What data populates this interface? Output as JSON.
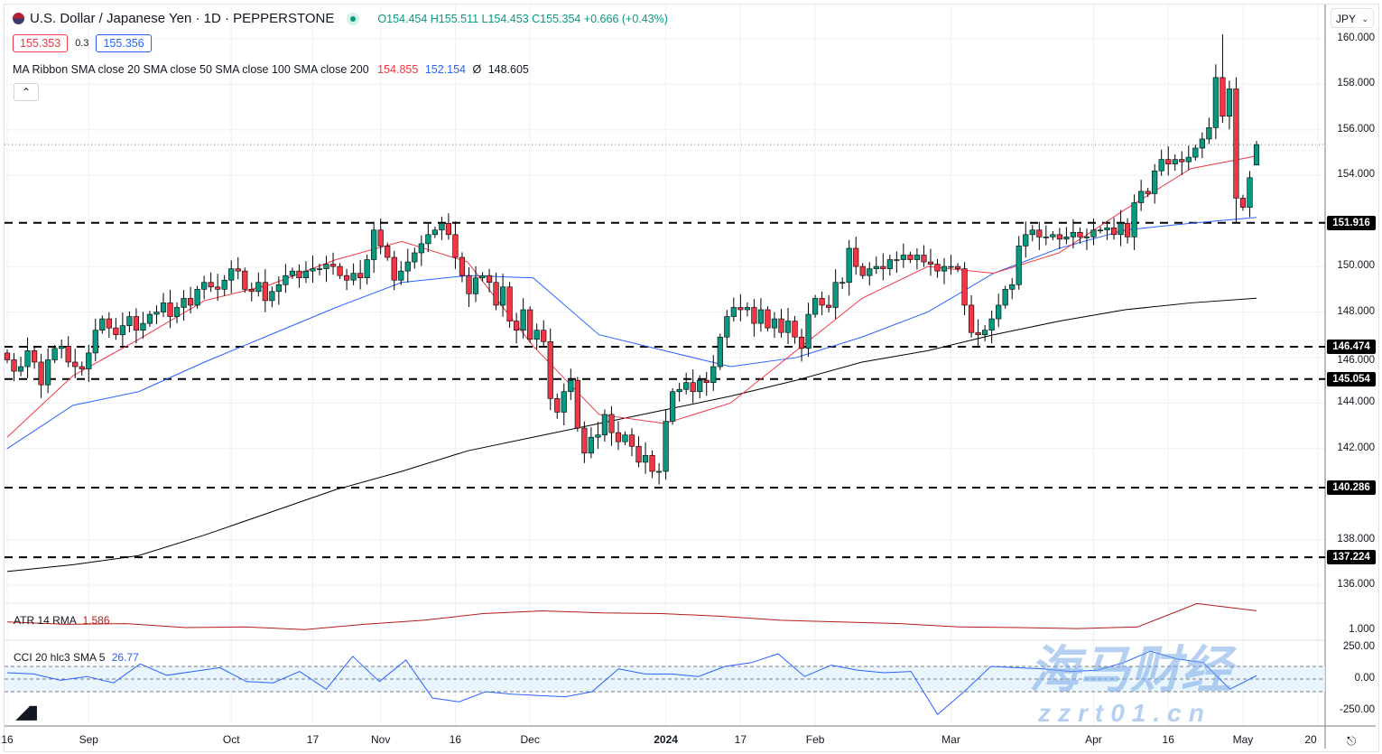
{
  "header": {
    "flag_icon": "us-jp-flag-icon",
    "title": "U.S. Dollar / Japanese Yen · 1D · PEPPERSTONE",
    "market_status_color": "#089981",
    "ohlc": "O154.454 H155.511 L154.453 C155.354 +0.666 (+0.43%)",
    "sell_price": "155.353",
    "spread": "0.3",
    "buy_price": "155.356"
  },
  "indicators": {
    "ma_ribbon_label": "MA Ribbon SMA close 20 SMA close 50 SMA close 100 SMA close 200",
    "ma_values": [
      "154.855",
      "152.154",
      "Ø",
      "148.605"
    ],
    "atr_label": "ATR 14 RMA",
    "atr_value": "1.586",
    "cci_label": "CCI 20 hlc3 SMA 5",
    "cci_value": "26.77"
  },
  "currency_selector": "JPY",
  "watermark": {
    "cn": "海马财经",
    "url": "zzrt01.cn"
  },
  "colors": {
    "up": "#089981",
    "down": "#f23645",
    "sma20": "#f23645",
    "sma50": "#2962ff",
    "sma_long": "#000000",
    "atr": "#b71c1c",
    "cci": "#2962ff"
  },
  "chart_data": {
    "type": "candlestick",
    "price_axis": {
      "ylim": [
        135.2,
        160.9
      ],
      "ticks": [
        "160.000",
        "158.000",
        "156.000",
        "154.000",
        "150.000",
        "148.000",
        "146.000",
        "144.000",
        "142.000",
        "138.000",
        "136.000"
      ]
    },
    "time_ticks": [
      "16",
      "Sep",
      "Oct",
      "17",
      "Nov",
      "16",
      "Dec",
      "2024",
      "17",
      "Feb",
      "Mar",
      "Apr",
      "16",
      "May",
      "20"
    ],
    "closes": [
      145.9,
      145.4,
      145.6,
      146.3,
      145.8,
      144.8,
      145.9,
      146.4,
      146.5,
      145.8,
      145.6,
      145.5,
      146.2,
      147.2,
      147.7,
      147.3,
      147.0,
      147.4,
      147.8,
      147.2,
      147.5,
      147.9,
      148.0,
      148.4,
      147.8,
      148.2,
      148.6,
      148.3,
      149.0,
      149.3,
      149.1,
      149.0,
      149.4,
      149.9,
      149.8,
      149.0,
      148.9,
      149.3,
      148.5,
      148.9,
      149.2,
      149.6,
      149.8,
      149.5,
      149.8,
      149.9,
      149.9,
      150.1,
      150.0,
      149.6,
      149.4,
      149.7,
      149.5,
      150.3,
      151.6,
      150.9,
      150.4,
      149.4,
      149.8,
      150.2,
      150.6,
      151.0,
      151.4,
      151.6,
      151.9,
      151.4,
      150.4,
      149.6,
      148.8,
      149.5,
      149.6,
      149.3,
      148.3,
      149.1,
      147.6,
      147.2,
      148.1,
      146.8,
      147.2,
      146.7,
      144.2,
      143.6,
      144.5,
      145.0,
      142.9,
      141.8,
      142.5,
      142.6,
      143.5,
      142.7,
      142.3,
      142.6,
      142.1,
      141.4,
      141.7,
      141.0,
      141.0,
      143.2,
      144.5,
      144.6,
      144.9,
      144.5,
      145.0,
      144.9,
      145.6,
      146.9,
      147.8,
      148.2,
      148.1,
      148.2,
      147.5,
      148.1,
      147.3,
      147.7,
      147.1,
      147.6,
      146.9,
      146.4,
      147.9,
      148.6,
      148.3,
      148.2,
      149.3,
      149.3,
      150.8,
      150.0,
      149.6,
      149.9,
      150.0,
      149.9,
      150.3,
      150.3,
      150.5,
      150.3,
      150.5,
      150.2,
      150.1,
      149.8,
      150.0,
      150.0,
      149.9,
      148.3,
      147.1,
      147.0,
      147.2,
      147.7,
      148.3,
      149.0,
      149.2,
      150.9,
      151.4,
      151.6,
      151.3,
      151.3,
      151.4,
      151.2,
      151.3,
      151.5,
      151.3,
      151.3,
      151.6,
      151.6,
      151.7,
      151.4,
      151.9,
      151.3,
      152.8,
      153.3,
      153.2,
      154.2,
      154.7,
      154.5,
      154.7,
      154.6,
      154.8,
      155.2,
      155.6,
      156.1,
      158.3,
      156.6,
      157.8,
      153.0,
      152.6,
      153.9,
      155.354
    ],
    "last_bar": {
      "open": 154.454,
      "high": 155.511,
      "low": 154.453,
      "close": 155.354
    },
    "notable_wicks": [
      {
        "bar": 179,
        "high": 160.2
      },
      {
        "bar": 181,
        "low": 151.9
      }
    ],
    "moving_averages": {
      "sma20": [
        142.5,
        145.2,
        146.8,
        148.5,
        149.2,
        150.3,
        151.1,
        150.2,
        146.5,
        143.5,
        143.1,
        144.0,
        146.3,
        148.6,
        150.0,
        149.7,
        150.6,
        152.5,
        154.3,
        154.855
      ],
      "sma50": [
        142.0,
        143.9,
        144.5,
        145.8,
        147.0,
        148.2,
        149.3,
        149.6,
        149.5,
        147.0,
        146.3,
        145.6,
        146.0,
        146.9,
        148.0,
        149.7,
        150.8,
        151.6,
        151.9,
        152.154
      ],
      "sma_long": [
        136.6,
        136.9,
        137.3,
        138.2,
        139.2,
        140.2,
        141.0,
        141.9,
        142.5,
        143.1,
        143.7,
        144.3,
        145.0,
        145.8,
        146.3,
        147.0,
        147.6,
        148.1,
        148.4,
        148.605
      ]
    },
    "levels": [
      "151.916",
      "146.474",
      "145.054",
      "140.286",
      "137.224"
    ],
    "current_price_line": 155.354,
    "atr": {
      "axis_tick": "1.000",
      "values": [
        1.25,
        1.18,
        1.2,
        1.08,
        1.1,
        1.02,
        1.18,
        1.3,
        1.5,
        1.58,
        1.52,
        1.5,
        1.42,
        1.3,
        1.25,
        1.2,
        1.1,
        1.08,
        1.05,
        1.1,
        1.8,
        1.586
      ]
    },
    "cci": {
      "axis_ticks": [
        "250.00",
        "0.00",
        "-250.00"
      ],
      "band": [
        -100,
        100
      ],
      "values": [
        50,
        40,
        -10,
        20,
        -30,
        120,
        30,
        60,
        90,
        -20,
        -30,
        60,
        -80,
        180,
        -20,
        150,
        -150,
        -180,
        -100,
        -120,
        -130,
        -140,
        -100,
        80,
        40,
        40,
        20,
        100,
        130,
        200,
        20,
        110,
        70,
        50,
        60,
        -280,
        -100,
        100,
        90,
        80,
        60,
        70,
        130,
        220,
        160,
        130,
        -80,
        26.77
      ]
    }
  }
}
